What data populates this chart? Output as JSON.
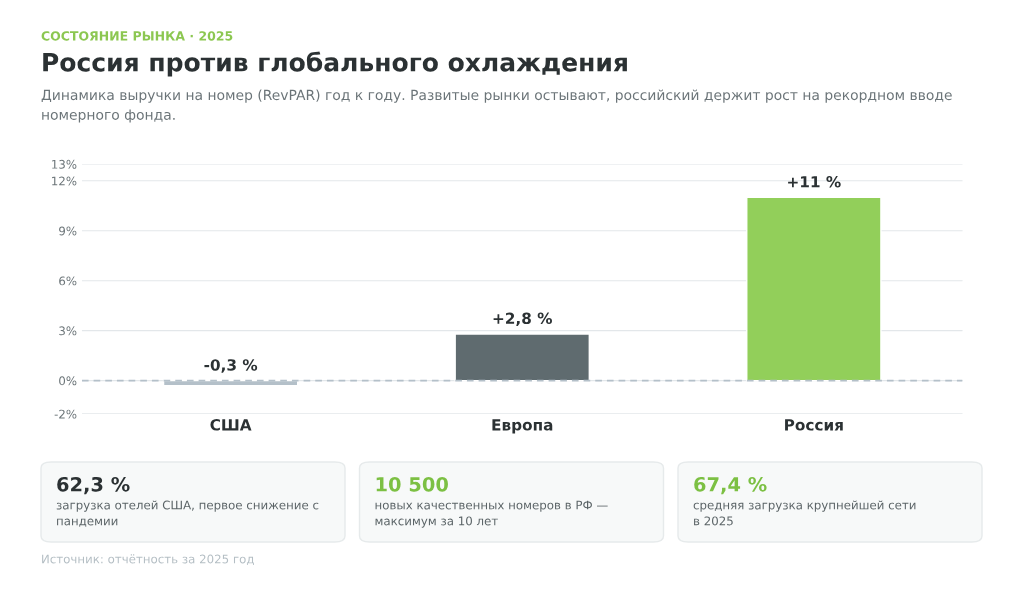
{
  "chart_data": {
    "type": "bar",
    "title": "Россия против глобального охлаждения",
    "subtitle": "Динамика выручки на номер (RevPAR) год к году. Развитые рынки остывают, российский держит рост на рекордном вводе\nномерного фонда.",
    "categories": [
      "США",
      "Европа",
      "Россия"
    ],
    "values": [
      -0.3,
      2.8,
      11
    ],
    "colors": [
      "#b4c0c9",
      "#5f6b6f",
      "#92cf5a"
    ],
    "value_labels": [
      "-0,3 %",
      "+2,8 %",
      "+11 %"
    ],
    "ylim": [
      -2,
      13
    ],
    "yticks": [
      {
        "value": -2,
        "label": "-2%"
      },
      {
        "value": 0,
        "label": "0%"
      },
      {
        "value": 3,
        "label": "3%"
      },
      {
        "value": 6,
        "label": "6%"
      },
      {
        "value": 9,
        "label": "9%"
      },
      {
        "value": 12,
        "label": "12%"
      },
      {
        "value": 13,
        "label": "13%"
      }
    ],
    "grid": "y",
    "ref_lines": [
      {
        "axis": "y",
        "value": 0,
        "label": null,
        "color": "#b4c0c9",
        "line_style": "dashed"
      }
    ],
    "annotations": [
      "СОСТОЯНИЕ РЫНКА · 2025",
      "62,3 %",
      "загрузка отелей США, первое снижение с\nпандемии",
      "10 500",
      "новых качественных номеров в РФ —\nмаксимум за 10 лет",
      "67,4 %",
      "средняя загрузка крупнейшей сети\nв 2025",
      "Источник: отчётность за 2025 год"
    ]
  }
}
